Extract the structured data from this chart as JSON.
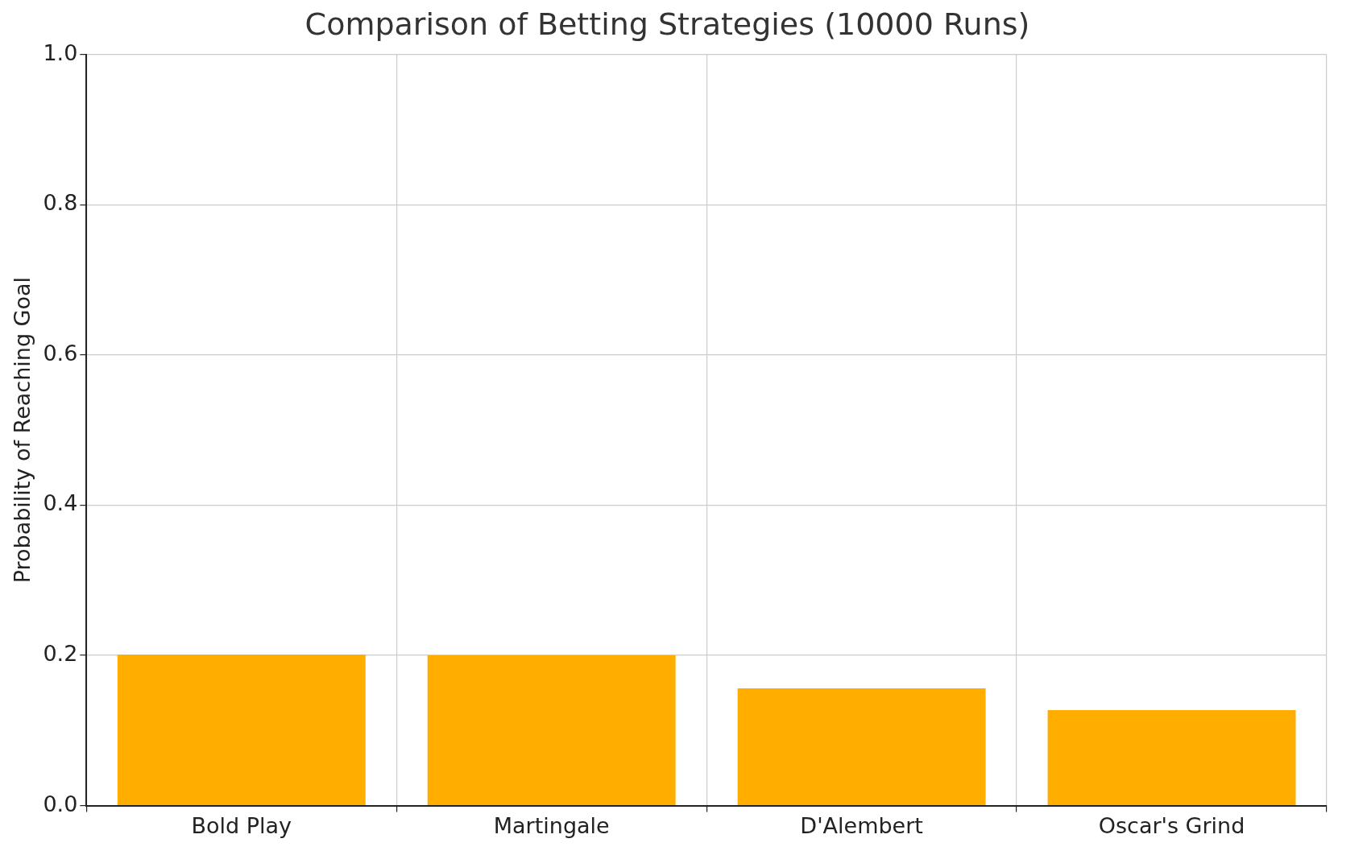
{
  "chart_data": {
    "type": "bar",
    "title": "Comparison of Betting Strategies (10000 Runs)",
    "ylabel": "Probability of Reaching Goal",
    "categories": [
      "Bold Play",
      "Martingale",
      "D'Alembert",
      "Oscar's Grind"
    ],
    "values": [
      0.201,
      0.2,
      0.156,
      0.127
    ],
    "color": "#ffae00",
    "ylim": [
      0,
      1
    ],
    "yticks": [
      {
        "value": 0,
        "label": "0.0"
      },
      {
        "value": 0.2,
        "label": "0.2"
      },
      {
        "value": 0.4,
        "label": "0.4"
      },
      {
        "value": 0.6,
        "label": "0.6"
      },
      {
        "value": 0.8,
        "label": "0.8"
      },
      {
        "value": 1,
        "label": "1.0"
      }
    ],
    "grid": true,
    "legend": false
  }
}
